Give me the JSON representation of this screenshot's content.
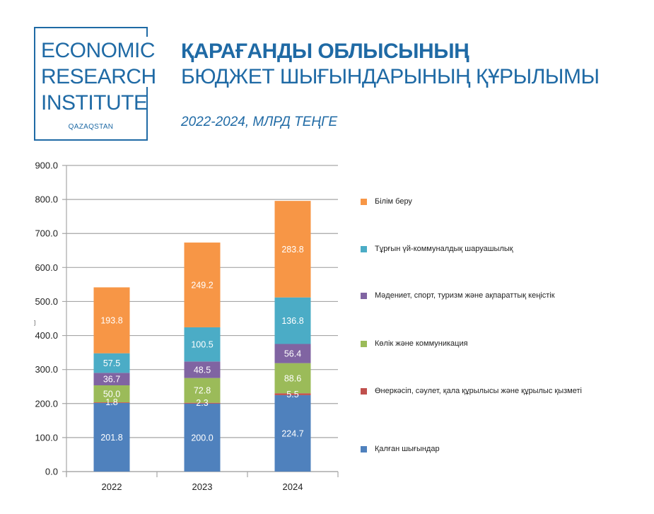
{
  "logo": {
    "lines": [
      "ECONOMIC",
      "RESEARCH",
      "INSTITUTE"
    ],
    "subtext": "QAZAQSTAN",
    "color": "#1f6aa5"
  },
  "header": {
    "title_line1": "ҚАРАҒАНДЫ ОБЛЫСЫНЫҢ",
    "title_line2": "БЮДЖЕТ ШЫҒЫНДАРЫНЫҢ ҚҰРЫЛЫМЫ",
    "subtitle": "2022-2024, МЛРД ТЕҢГЕ"
  },
  "stray_mark": "]",
  "chart_data": {
    "type": "bar",
    "stacked": true,
    "title": "ҚАРАҒАНДЫ ОБЛЫСЫНЫҢ БЮДЖЕТ ШЫҒЫНДАРЫНЫҢ ҚҰРЫЛЫМЫ",
    "subtitle": "2022-2024, МЛРД ТЕҢГЕ",
    "xlabel": "",
    "ylabel": "",
    "categories": [
      "2022",
      "2023",
      "2024"
    ],
    "ylim": [
      0,
      900
    ],
    "yticks": [
      "0.0",
      "100.0",
      "200.0",
      "300.0",
      "400.0",
      "500.0",
      "600.0",
      "700.0",
      "800.0",
      "900.0"
    ],
    "grid": true,
    "legend_position": "right",
    "series": [
      {
        "name": "Қалған шығындар",
        "color": "#4f81bd",
        "values": [
          201.8,
          200.0,
          224.7
        ],
        "labels": [
          "201.8",
          "200.0",
          "224.7"
        ]
      },
      {
        "name": "Өнеркәсіп, сәулет, қала құрылысы және құрылыс қызметі",
        "color": "#c0504d",
        "values": [
          1.8,
          2.3,
          5.5
        ],
        "labels": [
          "1.8",
          "2.3",
          "5.5"
        ]
      },
      {
        "name": "Көлік және коммуникация",
        "color": "#9bbb59",
        "values": [
          50.0,
          72.8,
          88.6
        ],
        "labels": [
          "50.0",
          "72.8",
          "88.6"
        ]
      },
      {
        "name": "Мәдениет, спорт, туризм және ақпараттық кеңістік",
        "color": "#8064a2",
        "values": [
          36.7,
          48.5,
          56.4
        ],
        "labels": [
          "36.7",
          "48.5",
          "56.4"
        ]
      },
      {
        "name": "Тұрғын үй-коммуналдық шаруашылық",
        "color": "#4bacc6",
        "values": [
          57.5,
          100.5,
          136.8
        ],
        "labels": [
          "57.5",
          "100.5",
          "136.8"
        ]
      },
      {
        "name": "Білім беру",
        "color": "#f79646",
        "values": [
          193.8,
          249.2,
          283.8
        ],
        "labels": [
          "193.8",
          "249.2",
          "283.8"
        ]
      }
    ],
    "legend_order": [
      5,
      4,
      3,
      2,
      1,
      0
    ]
  }
}
